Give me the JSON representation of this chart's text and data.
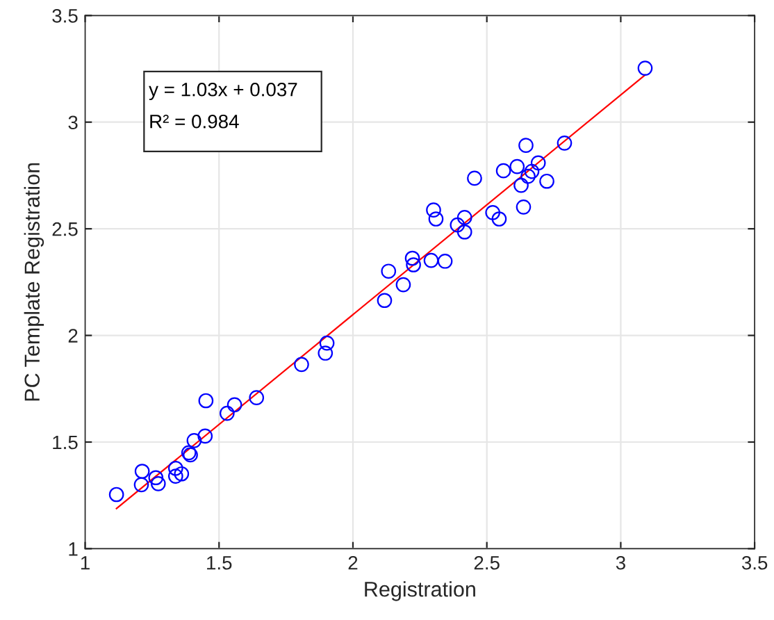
{
  "chart_data": {
    "type": "scatter",
    "xlabel": "Registration",
    "ylabel": "PC Template Registration",
    "annotations": [
      "y = 1.03x + 0.037",
      "R² = 0.984"
    ],
    "series": [
      {
        "color": "#0000ff",
        "marker": "circle",
        "x": [
          1.117,
          1.213,
          1.21,
          1.264,
          1.273,
          1.338,
          1.338,
          1.36,
          1.387,
          1.393,
          1.407,
          1.448,
          1.451,
          1.53,
          1.558,
          1.64,
          1.808,
          1.897,
          1.903,
          2.118,
          2.133,
          2.188,
          2.222,
          2.226,
          2.292,
          2.344,
          2.301,
          2.31,
          2.39,
          2.417,
          2.417,
          2.454,
          2.522,
          2.546,
          2.562,
          2.613,
          2.628,
          2.637,
          2.646,
          2.654,
          2.668,
          2.692,
          2.724,
          2.79,
          3.091
        ],
        "values": [
          1.254,
          1.363,
          1.3,
          1.333,
          1.305,
          1.377,
          1.34,
          1.351,
          1.45,
          1.44,
          1.507,
          1.528,
          1.694,
          1.635,
          1.675,
          1.708,
          1.864,
          1.917,
          1.964,
          2.164,
          2.301,
          2.238,
          2.362,
          2.331,
          2.352,
          2.348,
          2.588,
          2.546,
          2.518,
          2.553,
          2.485,
          2.737,
          2.576,
          2.546,
          2.772,
          2.792,
          2.704,
          2.602,
          2.891,
          2.746,
          2.769,
          2.809,
          2.723,
          2.902,
          3.253
        ]
      },
      {
        "type": "line",
        "color": "#ff0000",
        "line_style": "solid",
        "x": [
          1.117,
          3.091
        ],
        "values": [
          1.188,
          3.221
        ]
      }
    ],
    "xlim": [
      1,
      3.5
    ],
    "ylim": [
      1,
      3.5
    ],
    "xticks": [
      1,
      1.5,
      2,
      2.5,
      3,
      3.5
    ],
    "yticks": [
      1,
      1.5,
      2,
      2.5,
      3,
      3.5
    ],
    "grid": true
  }
}
